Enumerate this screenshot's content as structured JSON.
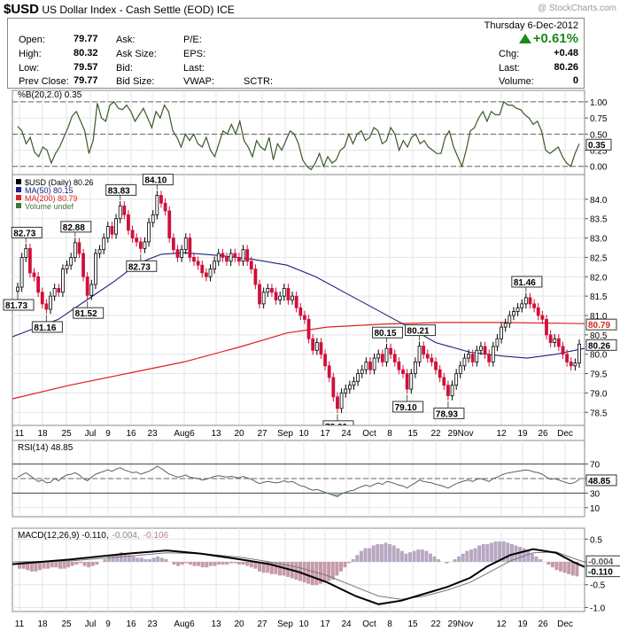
{
  "header": {
    "symbol": "$USD",
    "name": "US Dollar Index - Cash Settle (EOD)",
    "exchange": "ICE",
    "watermark": "@ StockCharts.com"
  },
  "quote": {
    "open_label": "Open:",
    "open": "79.77",
    "high_label": "High:",
    "high": "80.32",
    "low_label": "Low:",
    "low": "79.57",
    "prev_label": "Prev Close:",
    "prev": "79.77",
    "ask_label": "Ask:",
    "ask_size_label": "Ask Size:",
    "bid_label": "Bid:",
    "bid_size_label": "Bid Size:",
    "pe_label": "P/E:",
    "eps_label": "EPS:",
    "last_label": "Last:",
    "vwap_label": "VWAP:",
    "sctr_label": "SCTR:",
    "date": "Thursday  6-Dec-2012",
    "pct_change": "+0.61%",
    "chg_label": "Chg:",
    "chg": "+0.48",
    "last2_label": "Last:",
    "last": "80.26",
    "volume_label": "Volume:",
    "volume": "0"
  },
  "colors": {
    "up": "#000000",
    "down": "#d0103a",
    "ma50": "#1a237e",
    "ma200": "#e0201c",
    "pctb": "#3a5a2a",
    "rsi": "#556655"
  },
  "chart_data": [
    {
      "type": "line",
      "title": "%B(20,2.0) 0.35",
      "ylim": [
        -0.1,
        1.15
      ],
      "yticks": [
        "1.00",
        "0.75",
        "0.50",
        "0.25",
        "0.00"
      ],
      "last_label": "0.35",
      "refs": [
        0,
        0.5,
        1
      ],
      "values": [
        0.62,
        0.55,
        0.35,
        0.45,
        0.22,
        0.15,
        0.3,
        0.25,
        0.05,
        0.2,
        0.3,
        0.45,
        0.6,
        0.78,
        0.85,
        0.7,
        0.55,
        0.2,
        0.4,
        0.98,
        0.75,
        0.7,
        0.95,
        1.0,
        0.9,
        0.88,
        0.95,
        0.85,
        0.7,
        0.8,
        0.9,
        0.75,
        0.6,
        0.85,
        0.75,
        0.95,
        0.85,
        0.55,
        0.45,
        0.3,
        0.5,
        0.4,
        0.5,
        0.35,
        0.3,
        0.45,
        0.25,
        0.15,
        0.35,
        0.55,
        0.5,
        0.65,
        0.5,
        0.7,
        0.4,
        0.3,
        0.15,
        0.4,
        0.3,
        0.25,
        0.45,
        0.1,
        0.35,
        0.25,
        0.4,
        0.55,
        0.5,
        0.35,
        0.1,
        0.0,
        -0.05,
        0.05,
        0.2,
        0.0,
        0.15,
        0.05,
        0.1,
        0.25,
        0.3,
        0.5,
        0.35,
        0.5,
        0.55,
        0.4,
        0.45,
        0.6,
        0.55,
        0.35,
        0.4,
        0.6,
        0.5,
        0.25,
        0.4,
        0.3,
        0.45,
        0.5,
        0.35,
        0.4,
        0.3,
        0.25,
        0.2,
        0.2,
        0.45,
        0.55,
        0.3,
        0.15,
        0.0,
        0.25,
        0.55,
        0.6,
        0.75,
        0.85,
        0.7,
        0.85,
        0.8,
        0.8,
        1.0,
        0.95,
        0.95,
        0.9,
        0.88,
        0.8,
        0.75,
        0.65,
        0.7,
        0.55,
        0.25,
        0.2,
        0.25,
        0.3,
        0.15,
        0.05,
        0.0,
        0.2,
        0.35
      ]
    },
    {
      "type": "candlestick",
      "title": "$USD (Daily) 80.26",
      "legend": [
        {
          "name": "$USD (Daily) 80.26",
          "color": "#000000"
        },
        {
          "name": "MA(50) 80.15",
          "color": "#1a237e"
        },
        {
          "name": "MA(200) 80.79",
          "color": "#e0201c"
        },
        {
          "name": "Volume undef",
          "color": "#3a7a3a"
        }
      ],
      "ylim": [
        78.3,
        84.5
      ],
      "yticks": [
        "84.0",
        "83.5",
        "83.0",
        "82.5",
        "82.0",
        "81.5",
        "81.0",
        "80.5",
        "80.0",
        "79.5",
        "79.0",
        "78.5"
      ],
      "last_labels": {
        "ma200": "80.79",
        "close": "80.26"
      },
      "xlabels": [
        "11",
        "18",
        "25",
        "Jul",
        "9",
        "16",
        "23",
        "Aug6",
        "13",
        "20",
        "27",
        "Sep",
        "10",
        "17",
        "24",
        "Oct",
        "8",
        "15",
        "22",
        "29Nov",
        "12",
        "19",
        "26",
        "Dec"
      ],
      "closes": [
        81.73,
        82.5,
        82.73,
        82.1,
        82.0,
        81.6,
        81.3,
        81.16,
        81.5,
        81.7,
        81.6,
        82.2,
        82.3,
        82.5,
        82.88,
        82.6,
        82.0,
        81.52,
        81.8,
        82.6,
        82.7,
        83.0,
        83.3,
        83.1,
        83.5,
        83.83,
        83.6,
        83.2,
        83.0,
        82.9,
        82.73,
        82.9,
        83.4,
        83.6,
        84.1,
        83.9,
        83.7,
        83.0,
        82.7,
        82.5,
        82.7,
        83.0,
        82.5,
        82.4,
        82.3,
        82.1,
        82.0,
        82.2,
        82.4,
        82.6,
        82.5,
        82.4,
        82.6,
        82.5,
        82.4,
        82.7,
        82.4,
        82.2,
        81.8,
        81.3,
        81.6,
        81.7,
        81.6,
        81.4,
        81.5,
        81.7,
        81.4,
        81.5,
        81.2,
        81.0,
        80.9,
        80.4,
        80.1,
        80.3,
        80.0,
        79.7,
        79.4,
        78.9,
        78.6,
        79.0,
        79.1,
        79.2,
        79.3,
        79.5,
        79.6,
        79.8,
        79.6,
        79.9,
        80.0,
        79.8,
        80.15,
        80.0,
        79.8,
        79.6,
        79.5,
        79.1,
        79.5,
        79.8,
        80.21,
        80.0,
        79.9,
        79.8,
        79.6,
        79.4,
        79.2,
        78.93,
        79.2,
        79.5,
        79.7,
        79.9,
        80.0,
        79.8,
        80.1,
        80.2,
        80.0,
        79.8,
        80.2,
        80.4,
        80.7,
        80.8,
        81.0,
        81.1,
        81.2,
        81.3,
        81.46,
        81.3,
        81.2,
        81.0,
        80.9,
        80.5,
        80.3,
        80.4,
        80.2,
        80.0,
        79.8,
        79.7,
        79.77,
        80.26
      ],
      "ma50": {
        "from": 80.5,
        "points": [
          [
            0,
            80.45
          ],
          [
            0.08,
            80.9
          ],
          [
            0.13,
            81.4
          ],
          [
            0.18,
            81.9
          ],
          [
            0.22,
            82.35
          ],
          [
            0.26,
            82.58
          ],
          [
            0.3,
            82.62
          ],
          [
            0.36,
            82.55
          ],
          [
            0.42,
            82.45
          ],
          [
            0.48,
            82.3
          ],
          [
            0.53,
            82.0
          ],
          [
            0.58,
            81.6
          ],
          [
            0.63,
            81.2
          ],
          [
            0.68,
            80.8
          ],
          [
            0.74,
            80.3
          ],
          [
            0.8,
            80.05
          ],
          [
            0.86,
            79.95
          ],
          [
            0.9,
            79.9
          ],
          [
            0.95,
            80.0
          ],
          [
            1.0,
            80.15
          ]
        ]
      },
      "ma200": {
        "points": [
          [
            0,
            78.85
          ],
          [
            0.1,
            79.2
          ],
          [
            0.2,
            79.5
          ],
          [
            0.3,
            79.8
          ],
          [
            0.4,
            80.2
          ],
          [
            0.48,
            80.55
          ],
          [
            0.55,
            80.7
          ],
          [
            0.65,
            80.78
          ],
          [
            0.75,
            80.82
          ],
          [
            0.85,
            80.82
          ],
          [
            0.95,
            80.8
          ],
          [
            1.0,
            80.79
          ]
        ]
      },
      "annotations": [
        {
          "i": 0,
          "label": "81.73",
          "pos": "below"
        },
        {
          "i": 2,
          "label": "82.73",
          "pos": "above"
        },
        {
          "i": 7,
          "label": "81.16",
          "pos": "below"
        },
        {
          "i": 14,
          "label": "82.88",
          "pos": "above"
        },
        {
          "i": 17,
          "label": "81.52",
          "pos": "below"
        },
        {
          "i": 25,
          "label": "83.83",
          "pos": "above"
        },
        {
          "i": 30,
          "label": "82.73",
          "pos": "below"
        },
        {
          "i": 34,
          "label": "84.10",
          "pos": "above"
        },
        {
          "i": 78,
          "label": "78.60",
          "pos": "below"
        },
        {
          "i": 90,
          "label": "80.15",
          "pos": "above"
        },
        {
          "i": 95,
          "label": "79.10",
          "pos": "below"
        },
        {
          "i": 98,
          "label": "80.21",
          "pos": "above"
        },
        {
          "i": 105,
          "label": "78.93",
          "pos": "below"
        },
        {
          "i": 124,
          "label": "81.46",
          "pos": "above"
        }
      ]
    },
    {
      "type": "line",
      "title": "RSI(14) 48.85",
      "ylim": [
        0,
        100
      ],
      "yticks": [
        "70",
        "50",
        "30",
        "10"
      ],
      "refs": [
        30,
        50,
        70
      ],
      "last_label": "48.85",
      "values": [
        52,
        55,
        58,
        54,
        50,
        46,
        48,
        44,
        45,
        50,
        47,
        52,
        55,
        56,
        58,
        55,
        50,
        47,
        52,
        56,
        58,
        60,
        62,
        60,
        63,
        65,
        62,
        60,
        58,
        59,
        56,
        58,
        60,
        63,
        67,
        64,
        60,
        56,
        54,
        52,
        53,
        55,
        52,
        51,
        50,
        48,
        49,
        51,
        53,
        54,
        53,
        52,
        53,
        52,
        51,
        53,
        51,
        49,
        46,
        43,
        45,
        46,
        45,
        44,
        45,
        47,
        45,
        46,
        43,
        40,
        39,
        36,
        34,
        35,
        33,
        31,
        29,
        27,
        25,
        29,
        31,
        33,
        34,
        37,
        39,
        41,
        39,
        42,
        44,
        42,
        46,
        45,
        43,
        41,
        40,
        37,
        41,
        44,
        48,
        46,
        45,
        44,
        42,
        41,
        39,
        37,
        40,
        43,
        45,
        47,
        48,
        46,
        49,
        50,
        48,
        46,
        50,
        52,
        55,
        57,
        58,
        59,
        60,
        61,
        62,
        61,
        59,
        58,
        56,
        52,
        49,
        50,
        48,
        46,
        44,
        43,
        45,
        48.85
      ]
    },
    {
      "type": "line",
      "title": "MACD(12,26,9) -0.110, -0.004, -0.106",
      "series": [
        {
          "name": "MACD(12,26,9) -0.110",
          "color": "#000000"
        },
        {
          "name": "-0.004",
          "color": "#888888"
        },
        {
          "name": "-0.106",
          "color": "#b97d96"
        }
      ],
      "ylim": [
        -1.05,
        0.7
      ],
      "yticks": [
        "0.5",
        "0.0",
        "-0.5",
        "-1.0"
      ],
      "last_labels": [
        "-0.004",
        "-0.110"
      ],
      "xlabels": [
        "11",
        "18",
        "25",
        "Jul",
        "9",
        "16",
        "23",
        "Aug6",
        "13",
        "20",
        "27",
        "Sep",
        "10",
        "17",
        "24",
        "Oct",
        "8",
        "15",
        "22",
        "29Nov",
        "12",
        "19",
        "26",
        "Dec"
      ],
      "macd": {
        "points": [
          [
            0,
            -0.05
          ],
          [
            0.1,
            0.05
          ],
          [
            0.2,
            0.18
          ],
          [
            0.27,
            0.25
          ],
          [
            0.33,
            0.18
          ],
          [
            0.4,
            0.05
          ],
          [
            0.45,
            -0.05
          ],
          [
            0.5,
            -0.22
          ],
          [
            0.55,
            -0.45
          ],
          [
            0.6,
            -0.75
          ],
          [
            0.64,
            -0.93
          ],
          [
            0.68,
            -0.85
          ],
          [
            0.72,
            -0.7
          ],
          [
            0.76,
            -0.55
          ],
          [
            0.8,
            -0.35
          ],
          [
            0.83,
            -0.1
          ],
          [
            0.87,
            0.15
          ],
          [
            0.91,
            0.28
          ],
          [
            0.95,
            0.2
          ],
          [
            0.98,
            0.0
          ],
          [
            1.0,
            -0.11
          ]
        ]
      },
      "signal": {
        "points": [
          [
            0,
            0.0
          ],
          [
            0.1,
            0.02
          ],
          [
            0.2,
            0.12
          ],
          [
            0.27,
            0.2
          ],
          [
            0.33,
            0.18
          ],
          [
            0.4,
            0.1
          ],
          [
            0.45,
            0.0
          ],
          [
            0.5,
            -0.12
          ],
          [
            0.55,
            -0.3
          ],
          [
            0.6,
            -0.55
          ],
          [
            0.64,
            -0.75
          ],
          [
            0.68,
            -0.82
          ],
          [
            0.72,
            -0.75
          ],
          [
            0.76,
            -0.62
          ],
          [
            0.8,
            -0.45
          ],
          [
            0.83,
            -0.25
          ],
          [
            0.87,
            0.02
          ],
          [
            0.91,
            0.2
          ],
          [
            0.95,
            0.22
          ],
          [
            0.98,
            0.08
          ],
          [
            1.0,
            -0.004
          ]
        ]
      },
      "hist": [
        -0.05,
        -0.05,
        -0.06,
        -0.07,
        -0.07,
        -0.06,
        -0.05,
        -0.05,
        -0.04,
        -0.04,
        -0.05,
        -0.05,
        -0.04,
        -0.03,
        -0.02,
        -0.01,
        -0.03,
        -0.04,
        -0.03,
        -0.02,
        0.0,
        0.02,
        0.04,
        0.05,
        0.06,
        0.07,
        0.06,
        0.05,
        0.04,
        0.03,
        0.03,
        0.02,
        0.02,
        0.03,
        0.04,
        0.03,
        0.02,
        0.0,
        -0.02,
        -0.03,
        -0.02,
        -0.01,
        -0.02,
        -0.03,
        -0.03,
        -0.04,
        -0.04,
        -0.03,
        -0.03,
        -0.02,
        -0.02,
        -0.02,
        -0.01,
        -0.01,
        -0.02,
        -0.02,
        -0.03,
        -0.04,
        -0.05,
        -0.07,
        -0.08,
        -0.08,
        -0.09,
        -0.09,
        -0.1,
        -0.1,
        -0.11,
        -0.12,
        -0.13,
        -0.14,
        -0.15,
        -0.16,
        -0.17,
        -0.17,
        -0.16,
        -0.15,
        -0.14,
        -0.13,
        -0.1,
        -0.07,
        -0.04,
        -0.01,
        0.02,
        0.05,
        0.08,
        0.1,
        0.1,
        0.12,
        0.13,
        0.13,
        0.14,
        0.13,
        0.12,
        0.1,
        0.08,
        0.06,
        0.07,
        0.08,
        0.09,
        0.09,
        0.08,
        0.06,
        0.04,
        0.02,
        0.0,
        -0.01,
        0.0,
        0.02,
        0.04,
        0.06,
        0.08,
        0.09,
        0.1,
        0.12,
        0.13,
        0.13,
        0.14,
        0.15,
        0.15,
        0.15,
        0.14,
        0.13,
        0.12,
        0.11,
        0.1,
        0.08,
        0.06,
        0.04,
        0.02,
        0.0,
        -0.02,
        -0.04,
        -0.06,
        -0.07,
        -0.08,
        -0.09,
        -0.1,
        -0.106
      ]
    }
  ]
}
